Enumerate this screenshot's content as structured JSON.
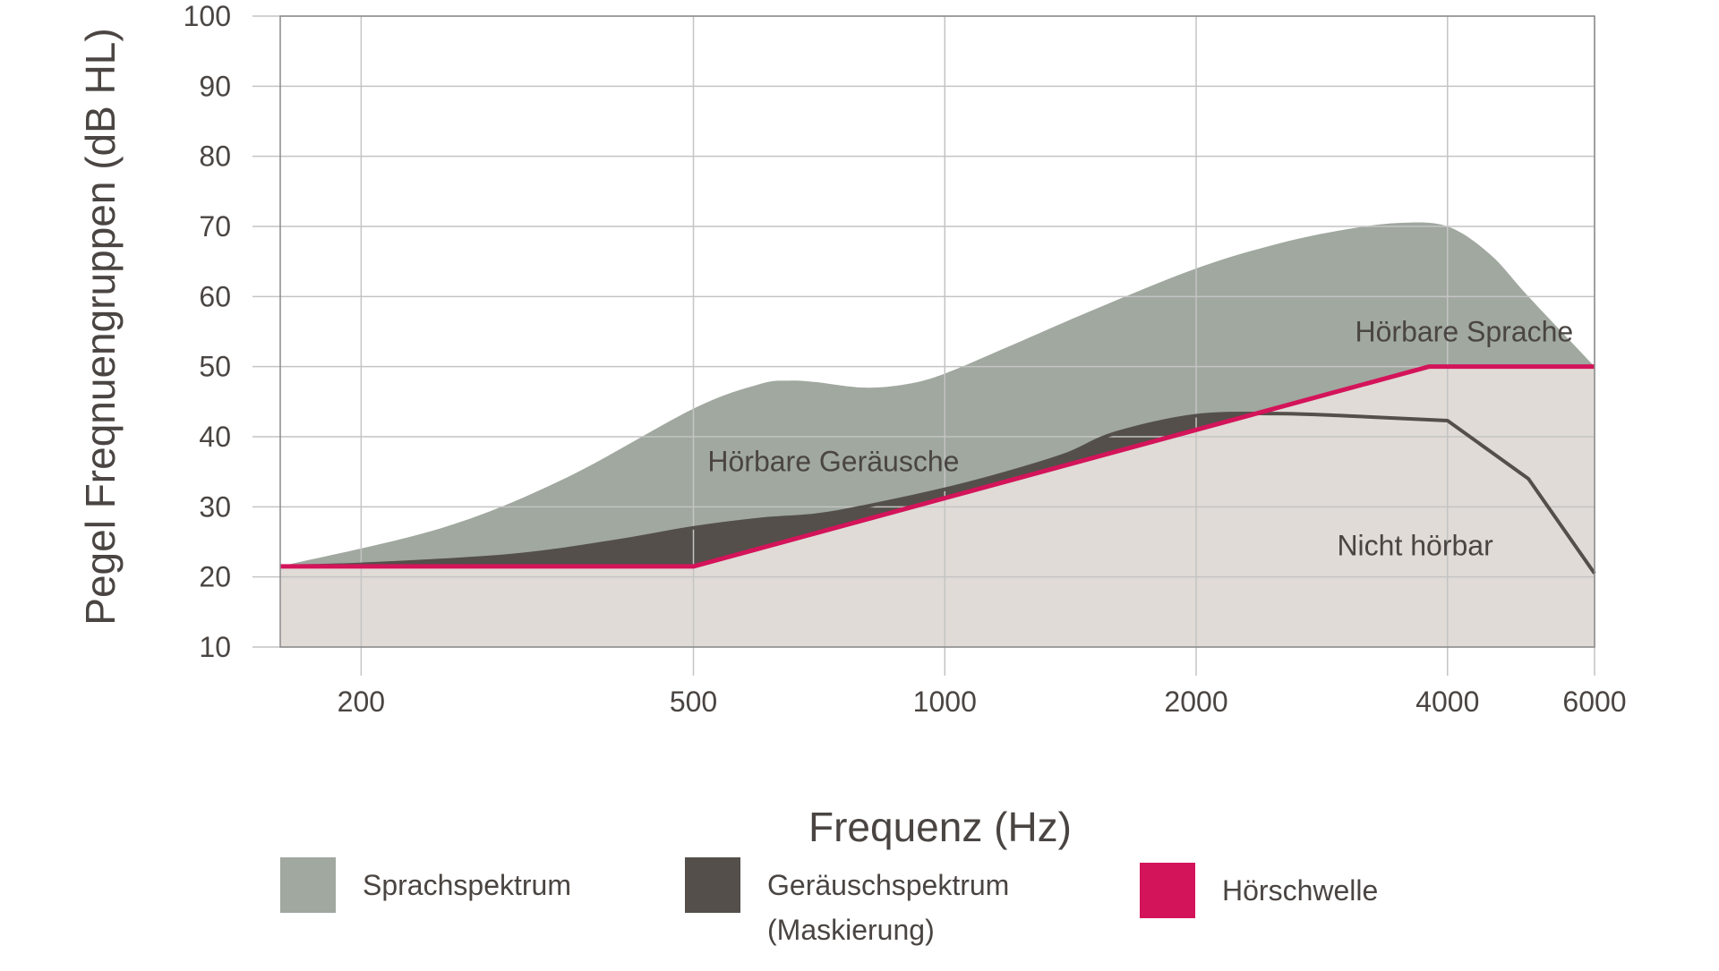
{
  "chart_data": {
    "type": "area",
    "title": "",
    "xlabel": "Frequenz (Hz)",
    "ylabel": "Pegel Freqnuengruppen (dB HL)",
    "x_scale": "log",
    "xlim": [
      160,
      6000
    ],
    "ylim": [
      10,
      100
    ],
    "x_ticks": [
      200,
      500,
      1000,
      2000,
      4000,
      6000
    ],
    "y_ticks": [
      10,
      20,
      30,
      40,
      50,
      60,
      70,
      80,
      90,
      100
    ],
    "grid": true,
    "series": [
      {
        "name": "Sprachspektrum",
        "color": "#a0a89f",
        "x": [
          160,
          250,
          350,
          500,
          600,
          650,
          700,
          800,
          900,
          1000,
          1200,
          1500,
          2000,
          2500,
          3000,
          3500,
          4000,
          4500,
          5000,
          6000
        ],
        "y": [
          21.5,
          27,
          34,
          44,
          47.5,
          48,
          47.8,
          47,
          47.5,
          49,
          53,
          58,
          64,
          67.5,
          69.5,
          70.5,
          70,
          66,
          60,
          50
        ]
      },
      {
        "name": "Geräuschspektrum (Maskierung)",
        "color": "#544f4a",
        "x": [
          160,
          200,
          300,
          400,
          500,
          600,
          700,
          800,
          1000,
          1200,
          1400,
          1600,
          2000,
          2500,
          3000,
          4000,
          5000,
          6000
        ],
        "y": [
          21.5,
          21.8,
          23,
          25,
          27,
          28.2,
          28.8,
          30,
          32.5,
          35,
          37.5,
          40.5,
          43,
          43.3,
          43,
          42.3,
          34,
          20.5
        ]
      },
      {
        "name": "Hörschwelle",
        "color": "#d4145a",
        "x": [
          160,
          500,
          3800,
          6000
        ],
        "y": [
          21.5,
          21.5,
          50,
          50
        ]
      }
    ],
    "region_labels": [
      {
        "text": "Hörbare Sprache",
        "x": 3100,
        "y": 55
      },
      {
        "text": "Hörbare Geräusche",
        "x": 520,
        "y": 36.5
      },
      {
        "text": "Nicht hörbar",
        "x": 2950,
        "y": 24.5
      }
    ],
    "legend": [
      {
        "label": "Sprachspektrum",
        "color": "#a0a89f"
      },
      {
        "label": "Geräuschspektrum\n(Maskierung)",
        "color": "#544f4a"
      },
      {
        "label": "Hörschwelle",
        "color": "#d4145a"
      }
    ],
    "colors": {
      "background_fill": "#e0dbd6",
      "grid": "#c4c4c4",
      "text": "#4a4542"
    }
  }
}
